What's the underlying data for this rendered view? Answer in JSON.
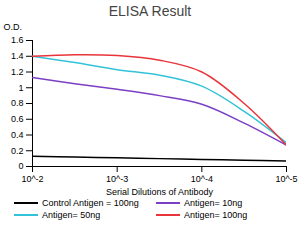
{
  "chart_data": {
    "type": "line",
    "title": "ELISA Result",
    "x_label": "Serial Dilutions of Antibody",
    "y_label": "O.D.",
    "x": [
      0.01,
      0.00316,
      0.001,
      0.000316,
      0.0001,
      3.16e-05,
      1e-05
    ],
    "series": [
      {
        "name": "Control Antigen = 100ng",
        "color": "#000000",
        "values": [
          0.13,
          0.12,
          0.11,
          0.1,
          0.09,
          0.08,
          0.07
        ]
      },
      {
        "name": "Antigen= 10ng",
        "color": "#7b3fc4",
        "values": [
          1.13,
          1.05,
          0.98,
          0.9,
          0.79,
          0.55,
          0.27
        ]
      },
      {
        "name": "Antigen= 50ng",
        "color": "#33c3d8",
        "values": [
          1.4,
          1.32,
          1.23,
          1.16,
          1.02,
          0.7,
          0.3
        ]
      },
      {
        "name": "Antigen= 100ng",
        "color": "#e8343a",
        "values": [
          1.4,
          1.42,
          1.41,
          1.35,
          1.2,
          0.8,
          0.27
        ]
      }
    ],
    "log": "x",
    "xlim": [
      0.01,
      1e-05
    ],
    "xticks": [
      {
        "value": 0.01,
        "label": "10^-2"
      },
      {
        "value": 0.001,
        "label": "10^-3"
      },
      {
        "value": 0.0001,
        "label": "10^-4"
      },
      {
        "value": 1e-05,
        "label": "10^-5"
      }
    ],
    "ylim": [
      0,
      1.6
    ],
    "yticks": [
      0,
      0.2,
      0.4,
      0.6,
      0.8,
      1,
      1.2,
      1.4,
      1.6
    ],
    "grid": false,
    "legend": "bottom"
  }
}
